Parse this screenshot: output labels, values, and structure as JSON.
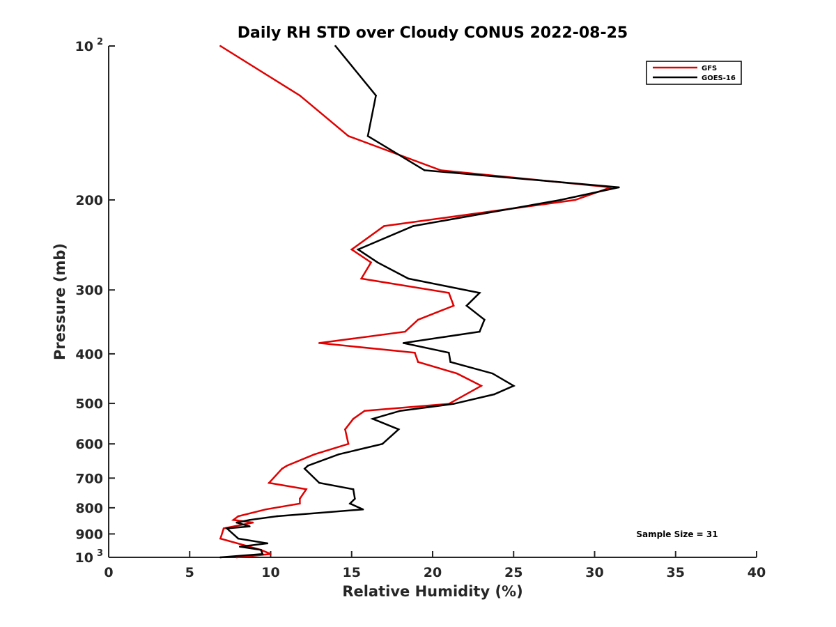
{
  "chart_data": {
    "type": "line",
    "title": "Daily RH STD over Cloudy CONUS 2022-08-25",
    "xlabel": "Relative Humidity (%)",
    "ylabel": "Pressure (mb)",
    "xlim": [
      0,
      40
    ],
    "ylim": [
      100,
      1000
    ],
    "y_scale": "log",
    "y_reversed": true,
    "x_ticks": [
      {
        "value": 0,
        "label": "0"
      },
      {
        "value": 5,
        "label": "5"
      },
      {
        "value": 10,
        "label": "10"
      },
      {
        "value": 15,
        "label": "15"
      },
      {
        "value": 20,
        "label": "20"
      },
      {
        "value": 25,
        "label": "25"
      },
      {
        "value": 30,
        "label": "30"
      },
      {
        "value": 35,
        "label": "35"
      },
      {
        "value": 40,
        "label": "40"
      }
    ],
    "y_ticks": [
      {
        "value": 100,
        "base": "10",
        "exp": "2"
      },
      {
        "value": 200,
        "label": "200"
      },
      {
        "value": 300,
        "label": "300"
      },
      {
        "value": 400,
        "label": "400"
      },
      {
        "value": 500,
        "label": "500"
      },
      {
        "value": 600,
        "label": "600"
      },
      {
        "value": 700,
        "label": "700"
      },
      {
        "value": 800,
        "label": "800"
      },
      {
        "value": 900,
        "label": "900"
      },
      {
        "value": 1000,
        "base": "10",
        "exp": "3"
      }
    ],
    "grid": false,
    "legend_position": "top-right",
    "annotation": "Sample Size = 31",
    "series": [
      {
        "name": "GFS",
        "color": "#e00000",
        "points": [
          [
            6.9,
            100
          ],
          [
            11.8,
            125
          ],
          [
            14.8,
            150
          ],
          [
            20.5,
            175
          ],
          [
            31.0,
            189
          ],
          [
            28.8,
            200
          ],
          [
            17.0,
            225
          ],
          [
            15.0,
            250
          ],
          [
            16.2,
            265
          ],
          [
            15.6,
            285
          ],
          [
            21.0,
            304
          ],
          [
            21.3,
            322
          ],
          [
            19.1,
            343
          ],
          [
            18.3,
            362
          ],
          [
            13.0,
            381
          ],
          [
            18.9,
            398
          ],
          [
            19.1,
            415
          ],
          [
            21.5,
            437
          ],
          [
            23.0,
            462
          ],
          [
            21.0,
            501
          ],
          [
            15.8,
            517
          ],
          [
            15.1,
            536
          ],
          [
            14.6,
            562
          ],
          [
            14.8,
            600
          ],
          [
            12.7,
            629
          ],
          [
            11.0,
            662
          ],
          [
            10.7,
            671
          ],
          [
            9.9,
            715
          ],
          [
            12.2,
            736
          ],
          [
            11.8,
            768
          ],
          [
            11.8,
            785
          ],
          [
            9.7,
            806
          ],
          [
            8.0,
            831
          ],
          [
            7.7,
            845
          ],
          [
            8.9,
            855
          ],
          [
            7.1,
            878
          ],
          [
            6.9,
            919
          ],
          [
            9.4,
            967
          ],
          [
            10.0,
            985
          ],
          [
            7.9,
            1000
          ]
        ]
      },
      {
        "name": "GOES-16",
        "color": "#000000",
        "points": [
          [
            14.0,
            100
          ],
          [
            16.5,
            125
          ],
          [
            16.0,
            150
          ],
          [
            19.5,
            175
          ],
          [
            31.5,
            189
          ],
          [
            27.9,
            200
          ],
          [
            18.8,
            225
          ],
          [
            15.4,
            250
          ],
          [
            16.6,
            265
          ],
          [
            18.5,
            285
          ],
          [
            22.9,
            304
          ],
          [
            22.1,
            322
          ],
          [
            23.2,
            343
          ],
          [
            22.9,
            362
          ],
          [
            18.2,
            381
          ],
          [
            21.0,
            398
          ],
          [
            21.1,
            415
          ],
          [
            23.7,
            437
          ],
          [
            25.0,
            462
          ],
          [
            23.8,
            480
          ],
          [
            21.3,
            501
          ],
          [
            18.0,
            517
          ],
          [
            16.3,
            536
          ],
          [
            17.9,
            562
          ],
          [
            16.9,
            600
          ],
          [
            14.2,
            629
          ],
          [
            12.3,
            662
          ],
          [
            12.1,
            671
          ],
          [
            13.0,
            715
          ],
          [
            15.1,
            736
          ],
          [
            15.2,
            768
          ],
          [
            14.9,
            785
          ],
          [
            15.7,
            806
          ],
          [
            10.4,
            831
          ],
          [
            8.7,
            845
          ],
          [
            7.9,
            855
          ],
          [
            8.7,
            870
          ],
          [
            7.3,
            878
          ],
          [
            8.0,
            919
          ],
          [
            9.8,
            939
          ],
          [
            8.1,
            953
          ],
          [
            9.4,
            967
          ],
          [
            9.5,
            985
          ],
          [
            6.9,
            1000
          ]
        ]
      }
    ]
  }
}
